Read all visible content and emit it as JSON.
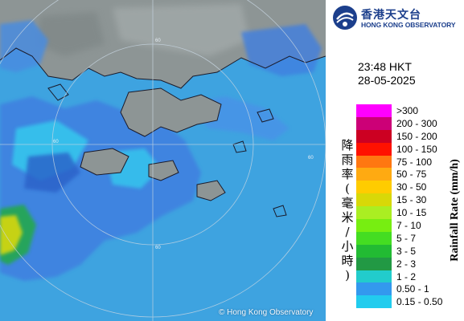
{
  "header": {
    "org_cn": "香港天文台",
    "org_en": "HONG KONG OBSERVATORY",
    "logo_icon": "hko-emblem-icon"
  },
  "timestamp": {
    "time": "23:48 HKT",
    "date": "28-05-2025"
  },
  "legend": {
    "title_en": "Rainfall Rate (mm/h)",
    "title_cn": "降雨率(毫米/小時)",
    "items": [
      {
        "label": ">300",
        "color": "#ff00ff"
      },
      {
        "label": "200 - 300",
        "color": "#cc0077"
      },
      {
        "label": "150 - 200",
        "color": "#cc0022"
      },
      {
        "label": "100 - 150",
        "color": "#ff1100"
      },
      {
        "label": "75 - 100",
        "color": "#ff7711"
      },
      {
        "label": "50 - 75",
        "color": "#ffaa11"
      },
      {
        "label": "30 - 50",
        "color": "#ffcc00"
      },
      {
        "label": "15 - 30",
        "color": "#d8d808"
      },
      {
        "label": "10 - 15",
        "color": "#aaee22"
      },
      {
        "label": "7 - 10",
        "color": "#77ee11"
      },
      {
        "label": "5 - 7",
        "color": "#44dd22"
      },
      {
        "label": "3 - 5",
        "color": "#22bb33"
      },
      {
        "label": "2 - 3",
        "color": "#229944"
      },
      {
        "label": "1 - 2",
        "color": "#22cccc"
      },
      {
        "label": "0.50 - 1",
        "color": "#3399ee"
      },
      {
        "label": "0.15 - 0.50",
        "color": "#22ccee"
      }
    ]
  },
  "map": {
    "copyright": "© Hong Kong Observatory",
    "range_ring_labels": [
      "60",
      "60",
      "60",
      "60"
    ],
    "colors": {
      "sea": "#3ea3e0",
      "land": "#8d9595",
      "coastline": "#1a1a2a"
    }
  }
}
